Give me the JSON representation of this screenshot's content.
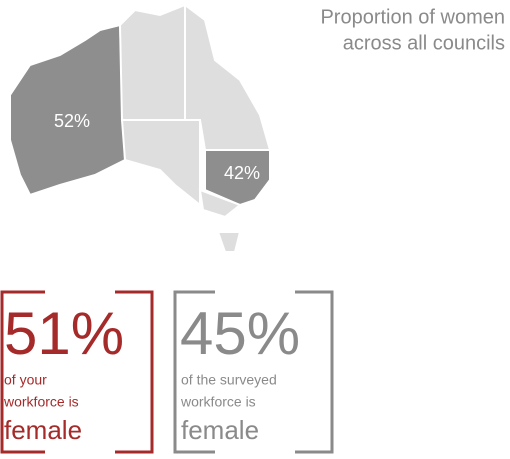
{
  "title": {
    "lines": [
      "Proportion of women",
      "across all councils"
    ]
  },
  "map": {
    "labels": [
      "52%",
      "42%"
    ]
  },
  "boxes": [
    {
      "value": "51%",
      "lines": [
        "of your",
        "workforce is"
      ],
      "emphasis": "female"
    },
    {
      "value": "45%",
      "lines": [
        "of the surveyed",
        "workforce is"
      ],
      "emphasis": "female"
    }
  ]
}
